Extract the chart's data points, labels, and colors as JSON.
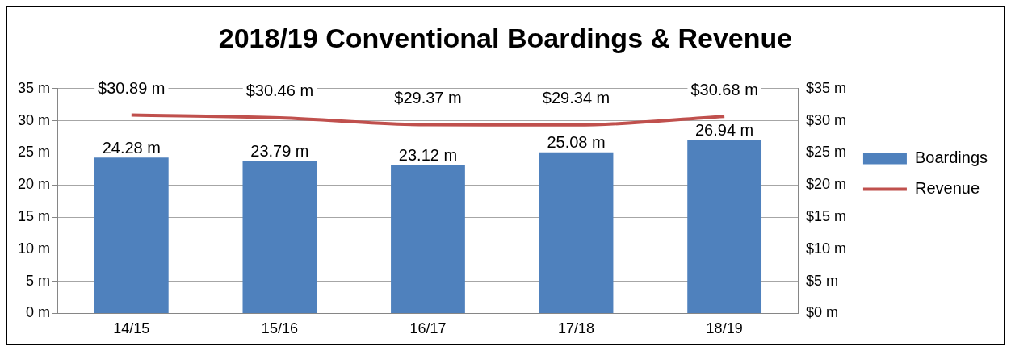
{
  "chart_data": {
    "type": "bar",
    "title": "2018/19 Conventional Boardings & Revenue",
    "categories": [
      "14/15",
      "15/16",
      "16/17",
      "17/18",
      "18/19"
    ],
    "series": [
      {
        "name": "Boardings",
        "color": "#4f81bd",
        "values": [
          24.28,
          23.79,
          23.12,
          25.08,
          26.94
        ],
        "value_labels": [
          "24.28 m",
          "23.79 m",
          "23.12 m",
          "25.08 m",
          "26.94 m"
        ]
      },
      {
        "name": "Revenue",
        "type": "line",
        "axis": "y2",
        "color": "#c0504d",
        "values": [
          30.89,
          30.46,
          29.37,
          29.34,
          30.68
        ],
        "value_labels": [
          "$30.89 m",
          "$30.46 m",
          "$29.37 m",
          "$29.34 m",
          "$30.68 m"
        ]
      }
    ],
    "ylim": [
      0,
      35
    ],
    "yticks": [
      {
        "value": 0,
        "label": "0 m"
      },
      {
        "value": 5,
        "label": "5 m"
      },
      {
        "value": 10,
        "label": "10 m"
      },
      {
        "value": 15,
        "label": "15 m"
      },
      {
        "value": 20,
        "label": "20 m"
      },
      {
        "value": 25,
        "label": "25 m"
      },
      {
        "value": 30,
        "label": "30 m"
      },
      {
        "value": 35,
        "label": "35 m"
      }
    ],
    "y2lim": [
      0,
      35
    ],
    "y2ticks": [
      {
        "value": 0,
        "label": "$0 m"
      },
      {
        "value": 5,
        "label": "$5 m"
      },
      {
        "value": 10,
        "label": "$10 m"
      },
      {
        "value": 15,
        "label": "$15 m"
      },
      {
        "value": 20,
        "label": "$20 m"
      },
      {
        "value": 25,
        "label": "$25 m"
      },
      {
        "value": 30,
        "label": "$30 m"
      },
      {
        "value": 35,
        "label": "$35 m"
      }
    ],
    "grid": "y",
    "legend": "right",
    "marker": "none",
    "line_style": "solid"
  }
}
